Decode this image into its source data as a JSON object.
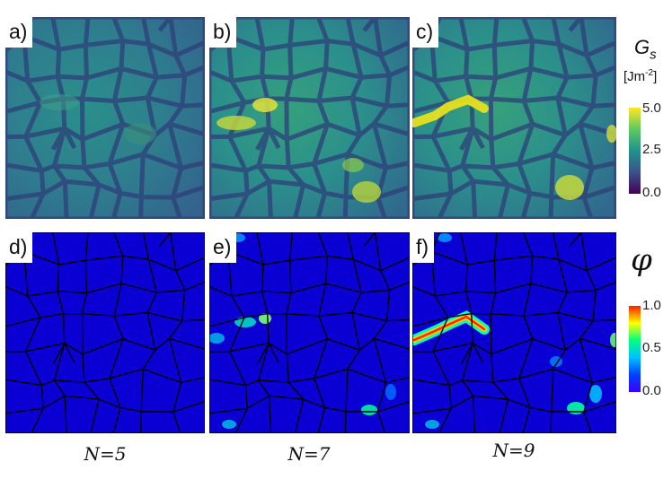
{
  "panels": [
    {
      "label": "a)",
      "row": "Gs",
      "N": 5
    },
    {
      "label": "b)",
      "row": "Gs",
      "N": 7
    },
    {
      "label": "c)",
      "row": "Gs",
      "N": 9
    },
    {
      "label": "d)",
      "row": "phi",
      "N": 5
    },
    {
      "label": "e)",
      "row": "phi",
      "N": 7
    },
    {
      "label": "f)",
      "row": "phi",
      "N": 9
    }
  ],
  "n_labels": [
    "N=5",
    "N=7",
    "N=9"
  ],
  "colorbar_top": {
    "symbol": "G",
    "subscript": "s",
    "unit_prefix": "[Jm",
    "unit_exp": "-2",
    "unit_suffix": "]",
    "ticks": [
      "5.0",
      "2.5",
      "0.0"
    ],
    "range": [
      0.0,
      5.0
    ],
    "colors": [
      "#440154",
      "#3b528b",
      "#21918c",
      "#5ec962",
      "#fde725"
    ]
  },
  "colorbar_bottom": {
    "symbol": "φ",
    "ticks": [
      "1.0",
      "0.5",
      "0.0"
    ],
    "range": [
      0.0,
      1.0
    ],
    "colors": [
      "#3a00ff",
      "#0040ff",
      "#00c0ff",
      "#00ff80",
      "#ffff00",
      "#ff2000"
    ]
  }
}
